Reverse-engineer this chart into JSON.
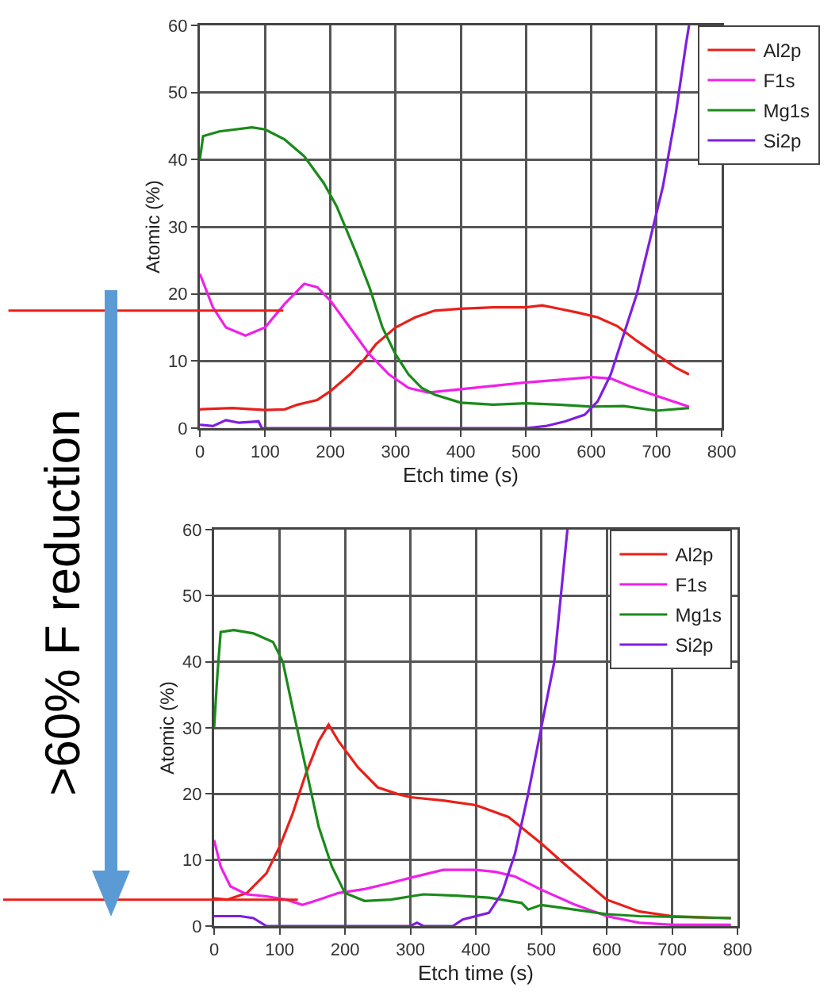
{
  "chart_data": [
    {
      "type": "line",
      "xlabel": "Etch time (s)",
      "ylabel": "Atomic (%)",
      "xlim": [
        0,
        800
      ],
      "xticks": [
        0,
        100,
        200,
        300,
        400,
        500,
        600,
        700,
        800
      ],
      "ylim": [
        0,
        60
      ],
      "yticks": [
        0,
        10,
        20,
        30,
        40,
        50,
        60
      ],
      "grid": true,
      "legend": "top right",
      "series": [
        {
          "name": "Al2p",
          "color": "#e8201a",
          "x": [
            0,
            50,
            100,
            130,
            150,
            180,
            200,
            230,
            250,
            270,
            300,
            330,
            360,
            400,
            450,
            500,
            525,
            550,
            580,
            610,
            640,
            670,
            700,
            730,
            750
          ],
          "values": [
            2.8,
            3,
            2.7,
            2.8,
            3.5,
            4.2,
            5.5,
            8,
            10,
            12.5,
            15,
            16.5,
            17.5,
            17.8,
            18,
            18,
            18.3,
            17.8,
            17.2,
            16.5,
            15.2,
            13,
            11,
            9,
            8
          ]
        },
        {
          "name": "F1s",
          "color": "#f020e8",
          "x": [
            0,
            20,
            40,
            70,
            100,
            130,
            160,
            180,
            200,
            230,
            260,
            290,
            320,
            350,
            400,
            450,
            500,
            550,
            600,
            630,
            660,
            700,
            750
          ],
          "values": [
            23,
            18,
            15,
            13.8,
            15,
            18.5,
            21.5,
            21,
            19,
            15,
            11,
            8,
            6,
            5.3,
            5.8,
            6.3,
            6.8,
            7.2,
            7.6,
            7.4,
            6.2,
            4.8,
            3.2
          ]
        },
        {
          "name": "Mg1s",
          "color": "#1a8a1a",
          "x": [
            0,
            5,
            30,
            80,
            100,
            130,
            160,
            190,
            210,
            240,
            260,
            280,
            300,
            320,
            340,
            360,
            400,
            450,
            500,
            550,
            600,
            650,
            700,
            750
          ],
          "values": [
            40,
            43.5,
            44.2,
            44.8,
            44.5,
            43,
            40.5,
            36.5,
            33,
            26,
            21,
            15,
            11,
            8,
            6,
            5,
            3.8,
            3.5,
            3.7,
            3.5,
            3.2,
            3.3,
            2.6,
            3
          ]
        },
        {
          "name": "Si2p",
          "color": "#7f1ee0",
          "x": [
            0,
            20,
            40,
            60,
            90,
            95,
            500,
            530,
            560,
            590,
            610,
            630,
            650,
            670,
            690,
            710,
            730,
            745,
            750
          ],
          "values": [
            0.5,
            0.3,
            1.2,
            0.8,
            1,
            0,
            0,
            0.3,
            1,
            2,
            4,
            8,
            14,
            20,
            28,
            36,
            47,
            57,
            60
          ]
        }
      ],
      "ref_lines": [
        {
          "axis": "y",
          "value": 17.5,
          "color": "#e8201a"
        }
      ],
      "annotations": [
        ">60%  F reduction"
      ]
    },
    {
      "type": "line",
      "xlabel": "Etch time (s)",
      "ylabel": "Atomic (%)",
      "xlim": [
        0,
        800
      ],
      "xticks": [
        0,
        100,
        200,
        300,
        400,
        500,
        600,
        700,
        800
      ],
      "ylim": [
        0,
        60
      ],
      "yticks": [
        0,
        10,
        20,
        30,
        40,
        50,
        60
      ],
      "grid": true,
      "legend": "top right",
      "series": [
        {
          "name": "Al2p",
          "color": "#e8201a",
          "x": [
            0,
            20,
            50,
            80,
            100,
            120,
            140,
            160,
            175,
            190,
            220,
            250,
            280,
            300,
            350,
            400,
            450,
            500,
            540,
            570,
            600,
            650,
            700,
            750,
            790
          ],
          "values": [
            4.2,
            4,
            5,
            8,
            12,
            17,
            23,
            28,
            30.5,
            28,
            24,
            21,
            20,
            19.5,
            19,
            18.3,
            16.5,
            12.5,
            9,
            6.5,
            4,
            2.2,
            1.5,
            1.3,
            1.2
          ]
        },
        {
          "name": "F1s",
          "color": "#f020e8",
          "x": [
            0,
            10,
            25,
            50,
            80,
            110,
            135,
            160,
            190,
            230,
            260,
            300,
            350,
            400,
            430,
            460,
            500,
            550,
            600,
            650,
            700,
            790
          ],
          "values": [
            13,
            9,
            6,
            4.8,
            4.5,
            4,
            3.2,
            4,
            5,
            5.6,
            6.3,
            7.3,
            8.5,
            8.5,
            8.2,
            7.5,
            5.5,
            3.3,
            1.5,
            0.5,
            0.2,
            0.2
          ]
        },
        {
          "name": "Mg1s",
          "color": "#1a8a1a",
          "x": [
            0,
            5,
            10,
            30,
            60,
            90,
            105,
            120,
            140,
            160,
            180,
            200,
            230,
            270,
            320,
            370,
            420,
            470,
            480,
            500,
            550,
            600,
            650,
            790
          ],
          "values": [
            30,
            38,
            44.5,
            44.8,
            44.3,
            43,
            40,
            33,
            24,
            15,
            9,
            5,
            3.8,
            4,
            4.8,
            4.6,
            4.3,
            3.5,
            2.5,
            3.2,
            2.5,
            1.8,
            1.5,
            1.2
          ]
        },
        {
          "name": "Si2p",
          "color": "#7f1ee0",
          "x": [
            0,
            40,
            60,
            80,
            300,
            310,
            320,
            365,
            380,
            420,
            440,
            460,
            480,
            500,
            520,
            530,
            540
          ],
          "values": [
            1.5,
            1.5,
            1.2,
            0,
            0,
            0.5,
            0,
            0,
            1,
            2,
            5,
            11,
            20,
            30,
            40,
            50,
            60
          ]
        }
      ],
      "ref_lines": [
        {
          "axis": "y",
          "value": 4,
          "color": "#e8201a"
        }
      ]
    }
  ]
}
